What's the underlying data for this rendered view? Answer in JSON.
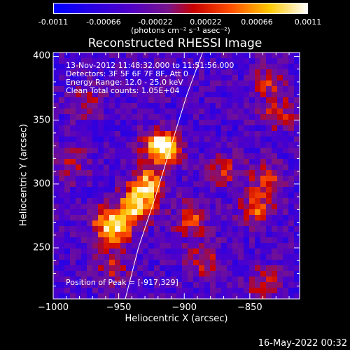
{
  "colorbar": {
    "ticks": [
      "-0.0011",
      "-0.00066",
      "-0.00022",
      "0.00022",
      "0.00066",
      "0.0011"
    ],
    "unit_label": "(photons cm⁻² s⁻¹ asec⁻²)"
  },
  "chart_data": {
    "type": "heatmap",
    "title": "Reconstructed RHESSI Image",
    "xlabel": "Heliocentric X (arcsec)",
    "ylabel": "Heliocentric Y (arcsec)",
    "xlim": [
      -1000,
      -812
    ],
    "ylim": [
      210,
      403
    ],
    "x_ticks": [
      "−1000",
      "−950",
      "−900",
      "−850"
    ],
    "x_tick_values": [
      -1000,
      -950,
      -900,
      -850
    ],
    "y_ticks": [
      "250",
      "300",
      "350",
      "400"
    ],
    "y_tick_values": [
      250,
      300,
      350,
      400
    ],
    "colorbar_range": [
      -0.0011,
      0.0011
    ],
    "peak_position": [
      -917,
      329
    ],
    "limb_curve": [
      [
        -945,
        210
      ],
      [
        -935,
        250
      ],
      [
        -922,
        290
      ],
      [
        -910,
        330
      ],
      [
        -898,
        370
      ],
      [
        -886,
        403
      ]
    ],
    "sources": [
      {
        "x": -917,
        "y": 329,
        "amp": 1.0
      },
      {
        "x": -928,
        "y": 300,
        "amp": 0.7
      },
      {
        "x": -937,
        "y": 282,
        "amp": 0.75
      },
      {
        "x": -952,
        "y": 262,
        "amp": 0.55
      },
      {
        "x": -960,
        "y": 272,
        "amp": 0.45
      },
      {
        "x": -895,
        "y": 272,
        "amp": 0.45
      },
      {
        "x": -845,
        "y": 280,
        "amp": 0.5
      },
      {
        "x": -838,
        "y": 305,
        "amp": 0.4
      },
      {
        "x": -828,
        "y": 355,
        "amp": 0.35
      },
      {
        "x": -835,
        "y": 380,
        "amp": 0.35
      },
      {
        "x": -870,
        "y": 310,
        "amp": 0.35
      },
      {
        "x": -985,
        "y": 315,
        "amp": 0.3
      },
      {
        "x": -975,
        "y": 365,
        "amp": 0.3
      },
      {
        "x": -955,
        "y": 235,
        "amp": 0.3
      },
      {
        "x": -885,
        "y": 240,
        "amp": 0.35
      },
      {
        "x": -840,
        "y": 222,
        "amp": 0.35
      }
    ]
  },
  "annotations": {
    "time_range": "13-Nov-2012 11:48:32.000 to 11:51:56.000",
    "detectors": "Detectors: 3F 5F 6F 7F 8F, Att 0",
    "energy": "Energy Range: 12.0 - 25.0 keV",
    "clean": "Clean     Total counts: 1.05E+04",
    "peak": "Position of Peak = [-917,329]"
  },
  "footer": {
    "date": "16-May-2022 00:32"
  }
}
